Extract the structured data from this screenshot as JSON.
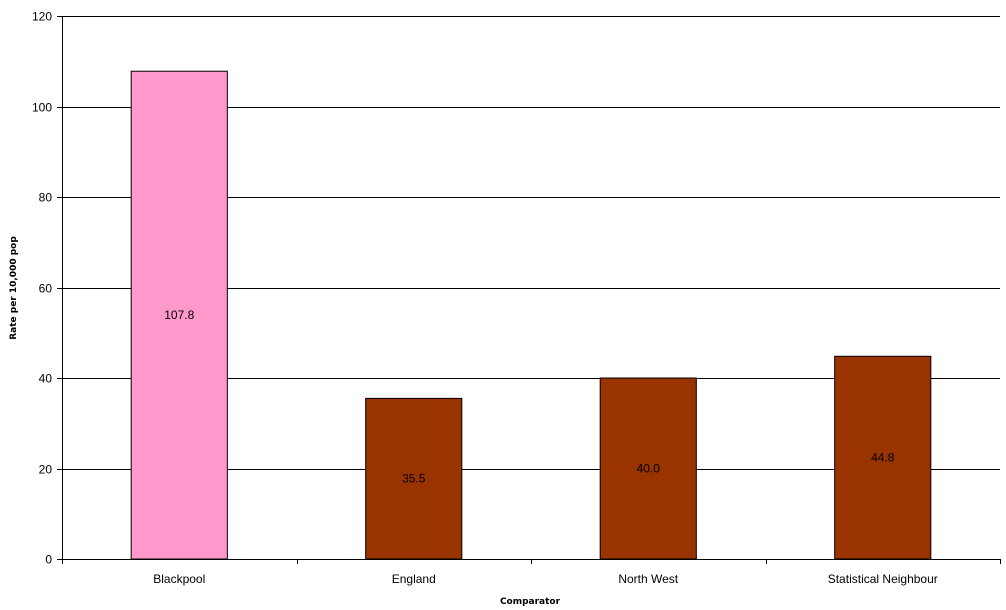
{
  "chart_data": {
    "type": "bar",
    "title": "",
    "xlabel": "Comparator",
    "ylabel": "Rate per 10,000 pop",
    "categories": [
      "Blackpool",
      "England",
      "North West",
      "Statistical Neighbour"
    ],
    "values": [
      107.8,
      35.5,
      40.0,
      44.8
    ],
    "data_labels": [
      "107.8",
      "35.5",
      "40.0",
      "44.8"
    ],
    "bar_colors": [
      "#ff99cc",
      "#993300",
      "#993300",
      "#993300"
    ],
    "ylim": [
      0,
      120
    ],
    "yticks": [
      0,
      20,
      40,
      60,
      80,
      100,
      120
    ],
    "grid": true,
    "legend": "none"
  }
}
